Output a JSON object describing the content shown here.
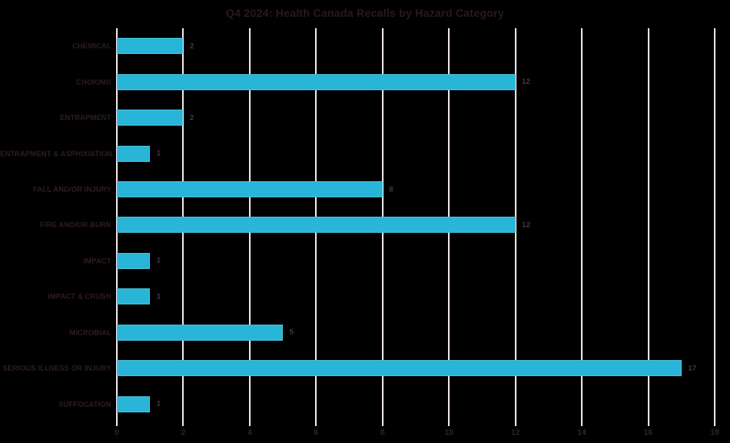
{
  "chart_data": {
    "type": "bar",
    "orientation": "horizontal",
    "title": "Q4 2024: Health Canada Recalls by Hazard Category",
    "categories": [
      "CHEMICAL",
      "CHOKING",
      "ENTRAPMENT",
      "ENTRAPMENT & ASPHIXIATION",
      "FALL AND/OR INJURY",
      "FIRE AND/OR BURN",
      "IMPACT",
      "IMPACT & CRUSH",
      "MICROBIAL",
      "SERIOUS ILLNESS OR INJURY",
      "SUFFOCATION"
    ],
    "values": [
      2,
      12,
      2,
      1,
      8,
      12,
      1,
      1,
      5,
      17,
      1
    ],
    "value_labels": [
      "2",
      "12",
      "2",
      "1",
      "8",
      "12",
      "1",
      "1",
      "5",
      "17",
      "1"
    ],
    "xlabel": "",
    "ylabel": "",
    "xlim": [
      0,
      18
    ],
    "x_ticks": [
      0,
      2,
      4,
      6,
      8,
      10,
      12,
      14,
      16,
      18
    ],
    "grid": "vertical-gridlines-on",
    "legend": "none",
    "colors": {
      "background": "#000000",
      "bar_fill": "#29b5d8",
      "bar_border": "#47c3db",
      "gridline": "#ecdfe6",
      "title_text": "#2b181f",
      "category_text": "#2e1c24",
      "value_text": "#4a3340",
      "tick_text": "#32202a"
    }
  }
}
